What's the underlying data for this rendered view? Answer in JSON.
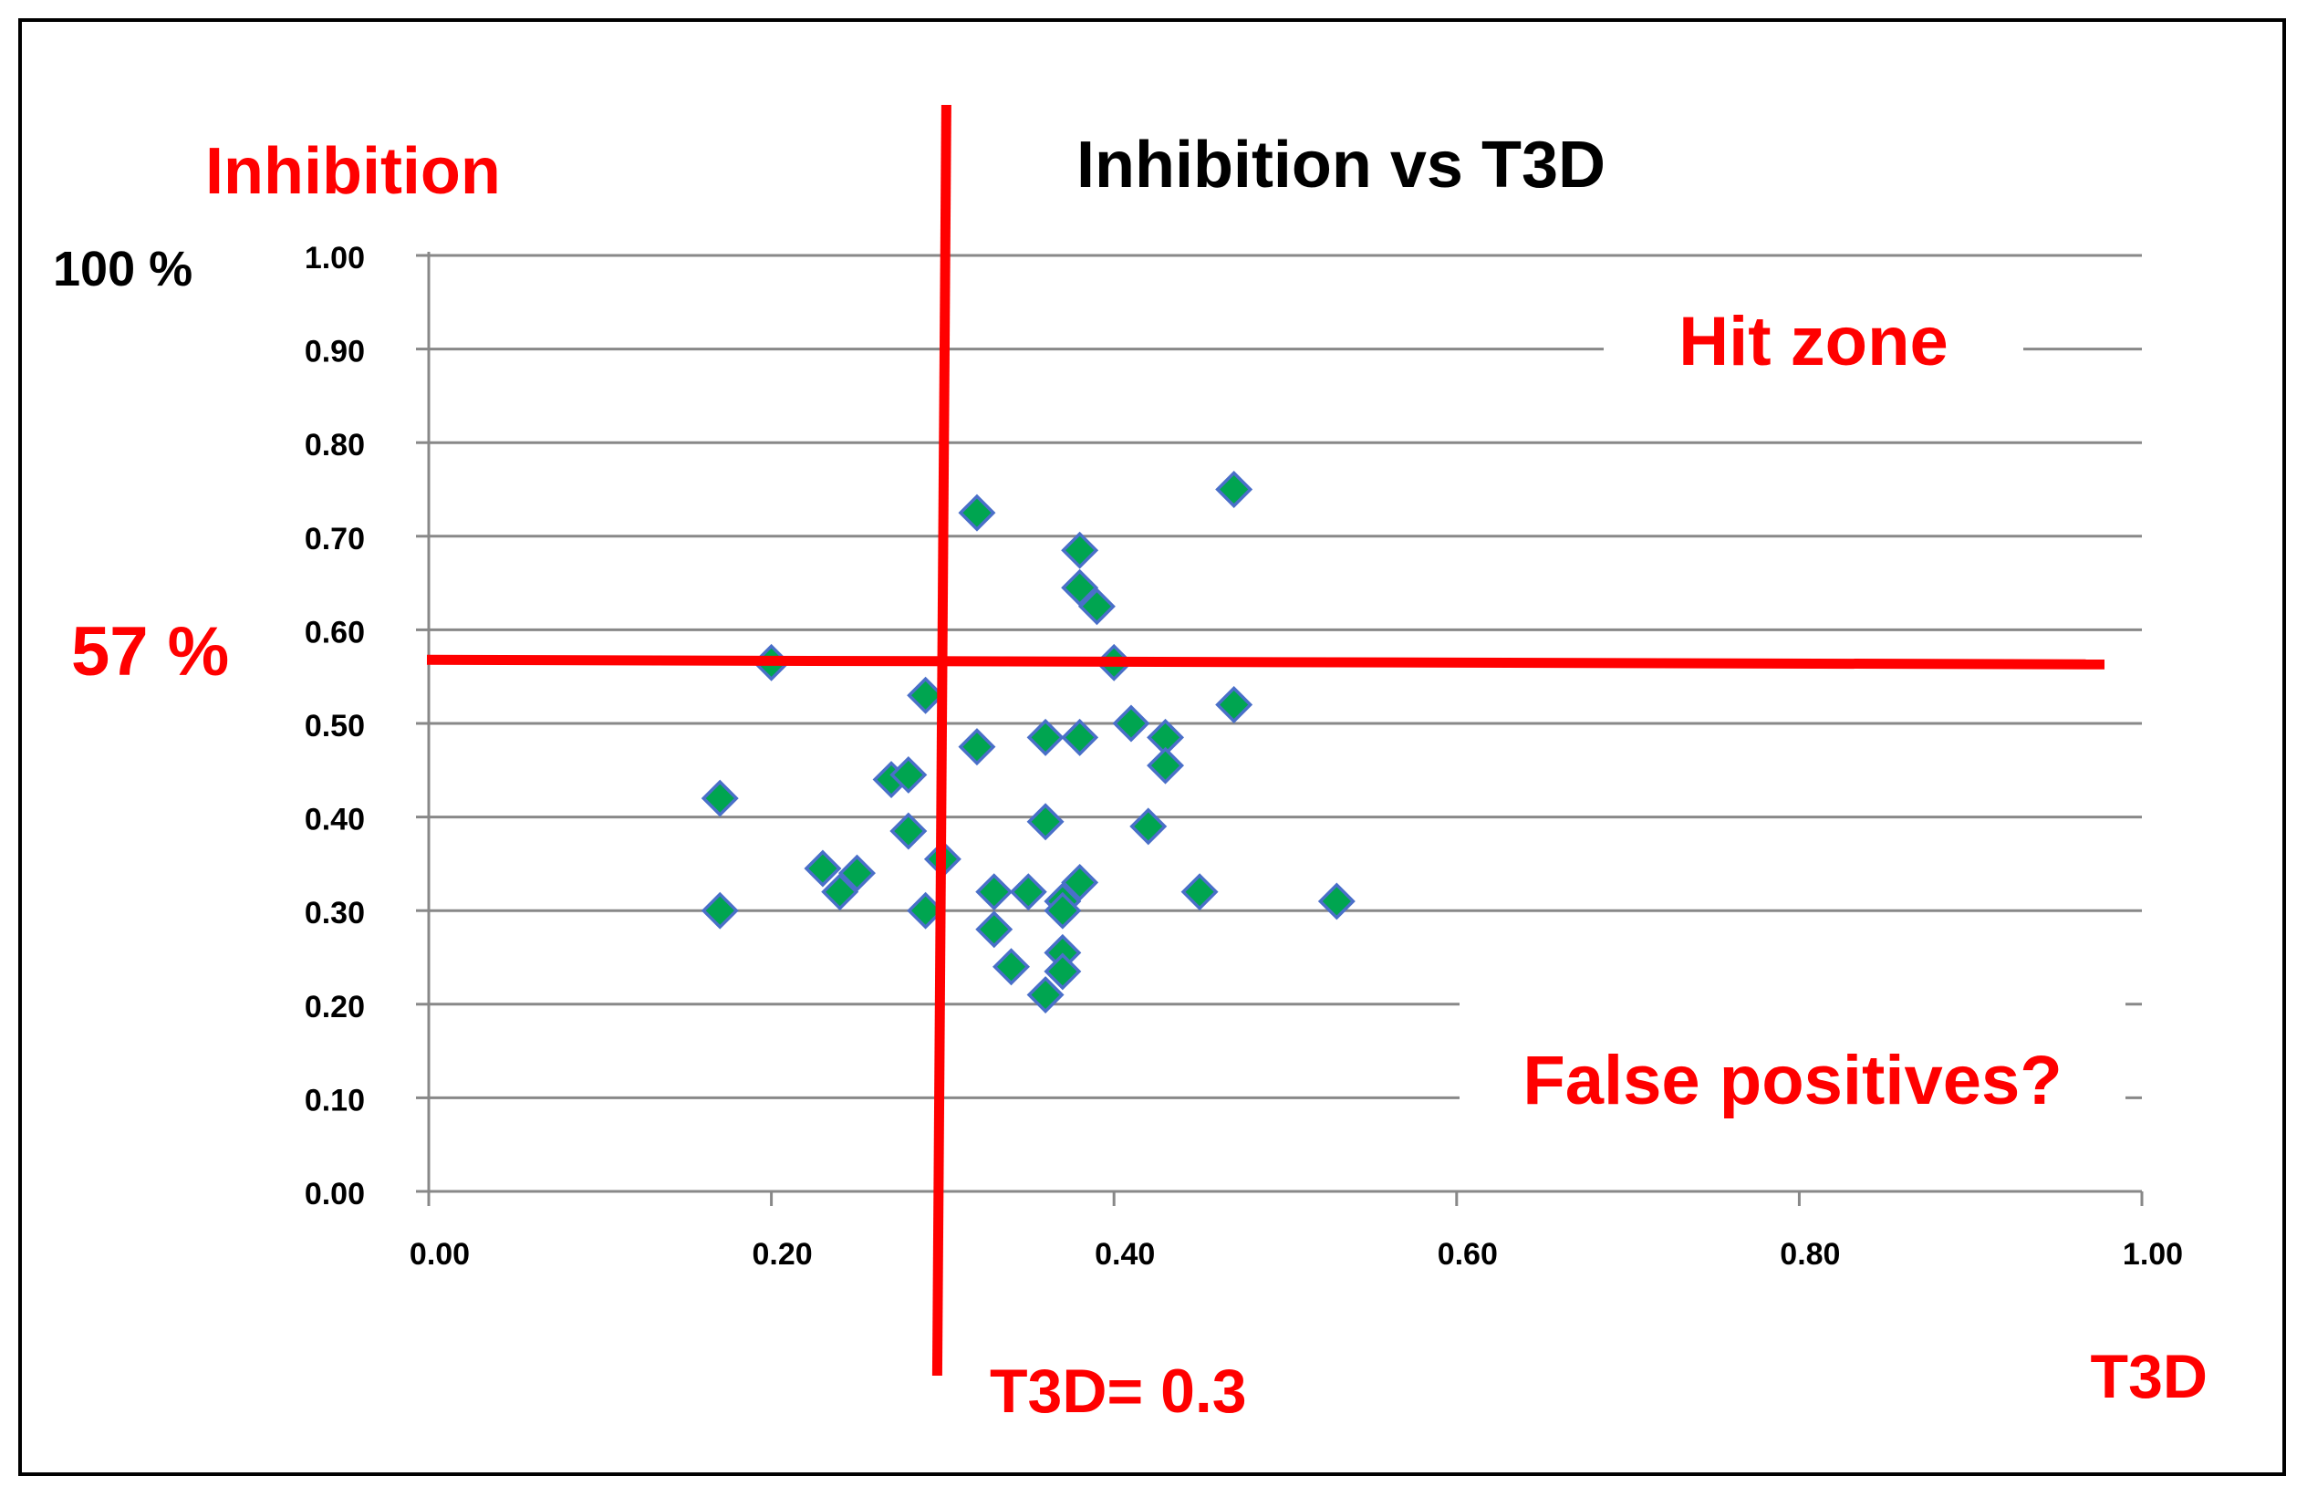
{
  "chart_data": {
    "type": "scatter",
    "title": "Inhibition vs T3D",
    "xlabel": "T3D",
    "ylabel": "Inhibition",
    "y_top_note": "100 %",
    "xlim": [
      0,
      1
    ],
    "ylim": [
      0,
      1
    ],
    "x_ticks": [
      "0.00",
      "0.20",
      "0.40",
      "0.60",
      "0.80",
      "1.00"
    ],
    "y_ticks": [
      "0.00",
      "0.10",
      "0.20",
      "0.30",
      "0.40",
      "0.50",
      "0.60",
      "0.70",
      "0.80",
      "0.90",
      "1.00"
    ],
    "threshold_x": {
      "value": 0.3,
      "label": "T3D= 0.3"
    },
    "threshold_y": {
      "value": 0.565,
      "label": "57 %"
    },
    "zone_labels": {
      "hit": "Hit zone",
      "false_pos": "False positives?"
    },
    "points": [
      {
        "x": 0.17,
        "y": 0.42
      },
      {
        "x": 0.17,
        "y": 0.3
      },
      {
        "x": 0.2,
        "y": 0.565
      },
      {
        "x": 0.23,
        "y": 0.345
      },
      {
        "x": 0.24,
        "y": 0.32
      },
      {
        "x": 0.25,
        "y": 0.34
      },
      {
        "x": 0.27,
        "y": 0.44
      },
      {
        "x": 0.28,
        "y": 0.445
      },
      {
        "x": 0.28,
        "y": 0.385
      },
      {
        "x": 0.29,
        "y": 0.53
      },
      {
        "x": 0.29,
        "y": 0.3
      },
      {
        "x": 0.3,
        "y": 0.355
      },
      {
        "x": 0.32,
        "y": 0.725
      },
      {
        "x": 0.32,
        "y": 0.475
      },
      {
        "x": 0.33,
        "y": 0.32
      },
      {
        "x": 0.33,
        "y": 0.28
      },
      {
        "x": 0.34,
        "y": 0.24
      },
      {
        "x": 0.35,
        "y": 0.32
      },
      {
        "x": 0.36,
        "y": 0.485
      },
      {
        "x": 0.36,
        "y": 0.395
      },
      {
        "x": 0.36,
        "y": 0.21
      },
      {
        "x": 0.37,
        "y": 0.31
      },
      {
        "x": 0.37,
        "y": 0.3
      },
      {
        "x": 0.37,
        "y": 0.255
      },
      {
        "x": 0.37,
        "y": 0.235
      },
      {
        "x": 0.38,
        "y": 0.685
      },
      {
        "x": 0.38,
        "y": 0.645
      },
      {
        "x": 0.38,
        "y": 0.485
      },
      {
        "x": 0.38,
        "y": 0.33
      },
      {
        "x": 0.39,
        "y": 0.625
      },
      {
        "x": 0.4,
        "y": 0.565
      },
      {
        "x": 0.41,
        "y": 0.5
      },
      {
        "x": 0.42,
        "y": 0.39
      },
      {
        "x": 0.43,
        "y": 0.485
      },
      {
        "x": 0.43,
        "y": 0.455
      },
      {
        "x": 0.45,
        "y": 0.32
      },
      {
        "x": 0.47,
        "y": 0.75
      },
      {
        "x": 0.47,
        "y": 0.52
      },
      {
        "x": 0.53,
        "y": 0.31
      }
    ],
    "colors": {
      "marker": "#00a550",
      "marker_edge": "#4a6fc9",
      "threshold": "#ff0000",
      "grid": "#888888"
    },
    "grid": true
  }
}
